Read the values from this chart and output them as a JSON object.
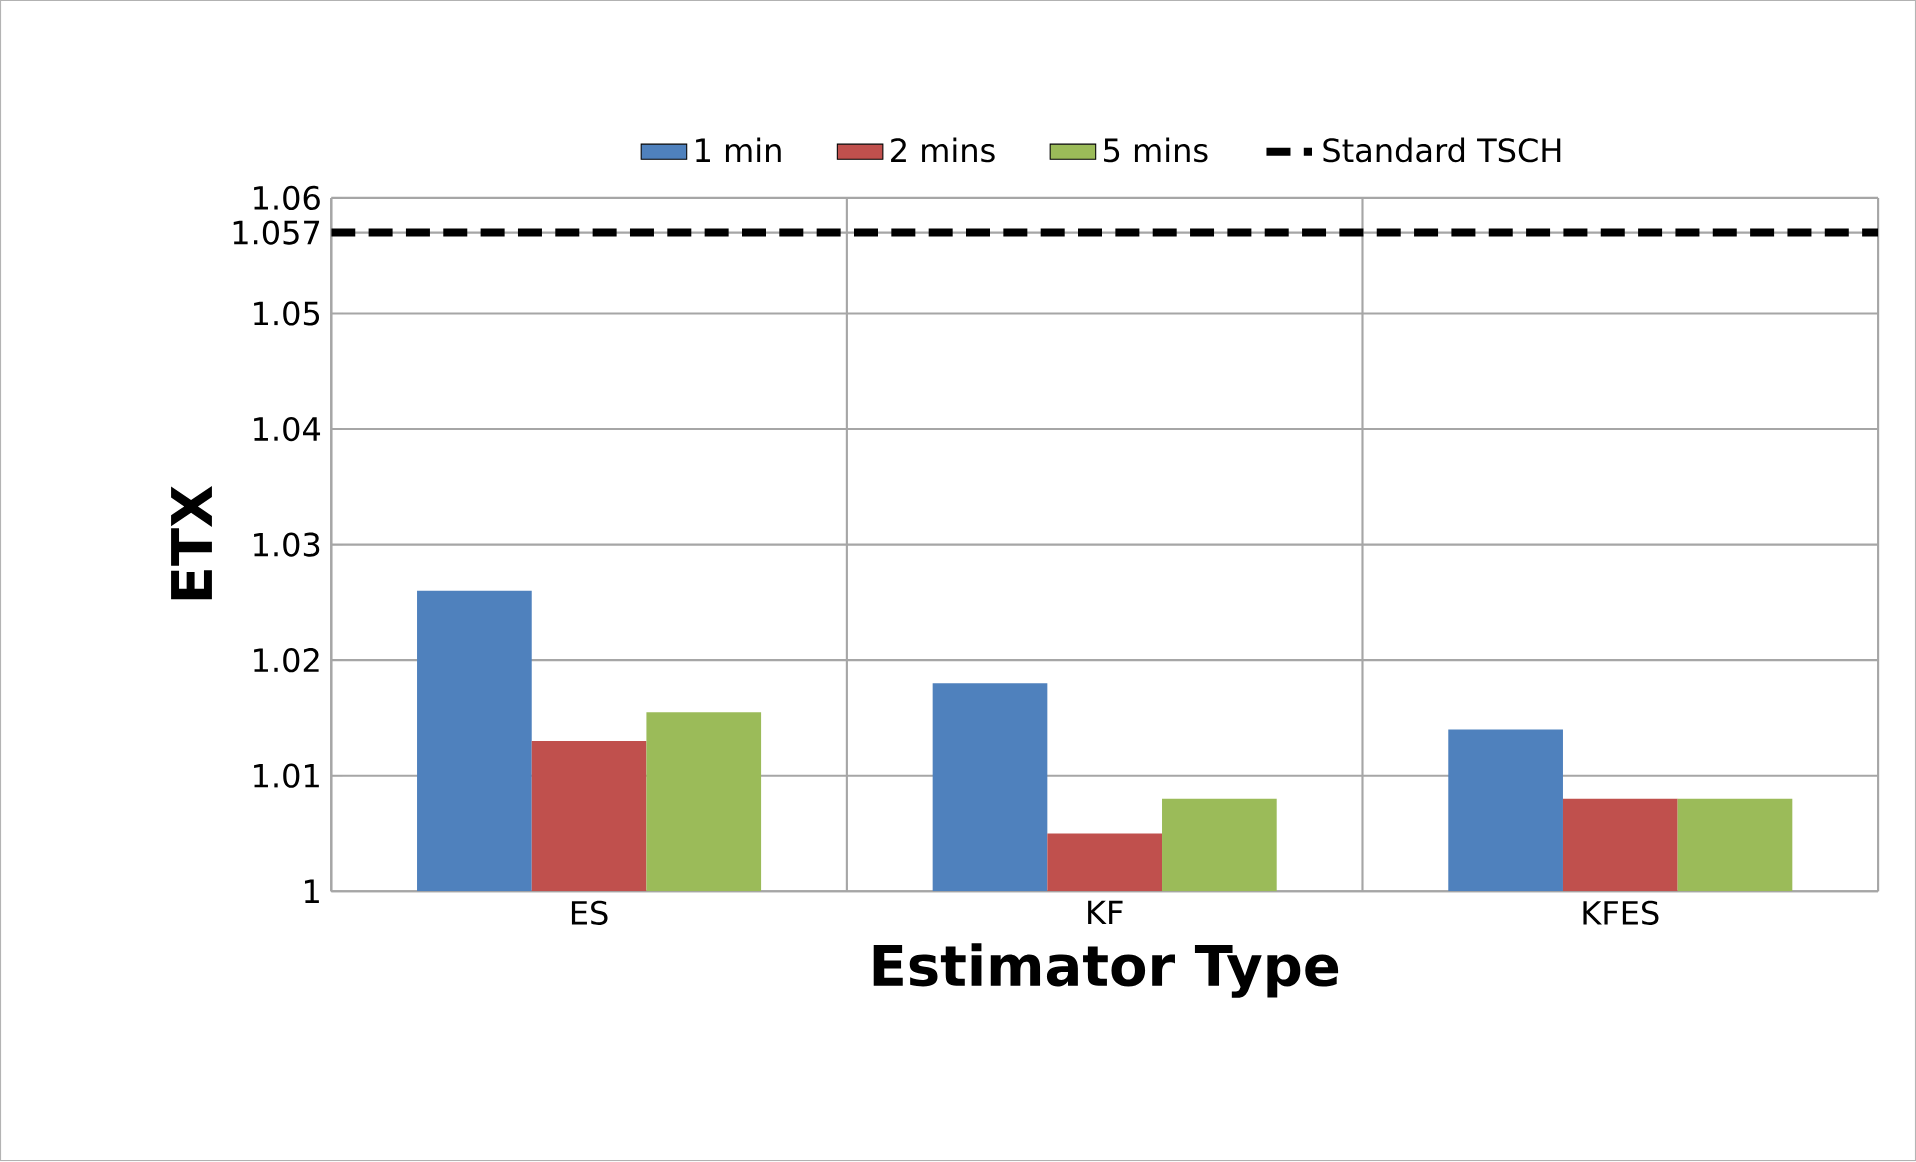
{
  "chart_data": {
    "type": "bar",
    "xlabel": "Estimator Type",
    "ylabel": "ETX",
    "categories": [
      "ES",
      "KF",
      "KFES"
    ],
    "series": [
      {
        "name": "1 min",
        "color": "#4f81bd",
        "values": [
          1.026,
          1.018,
          1.014
        ]
      },
      {
        "name": "2 mins",
        "color": "#c0504d",
        "values": [
          1.013,
          1.005,
          1.008
        ]
      },
      {
        "name": "5 mins",
        "color": "#9bbb59",
        "values": [
          1.0155,
          1.008,
          1.008
        ]
      }
    ],
    "ylim": [
      1,
      1.06
    ],
    "yticks": [
      1,
      1.01,
      1.02,
      1.03,
      1.04,
      1.05,
      1.057,
      1.06
    ],
    "grid": true,
    "legend": "top",
    "ref_lines": [
      {
        "axis": "y",
        "value": 1.057,
        "label": "Standard TSCH",
        "color": "#000000",
        "line_style": "dashed"
      }
    ]
  }
}
